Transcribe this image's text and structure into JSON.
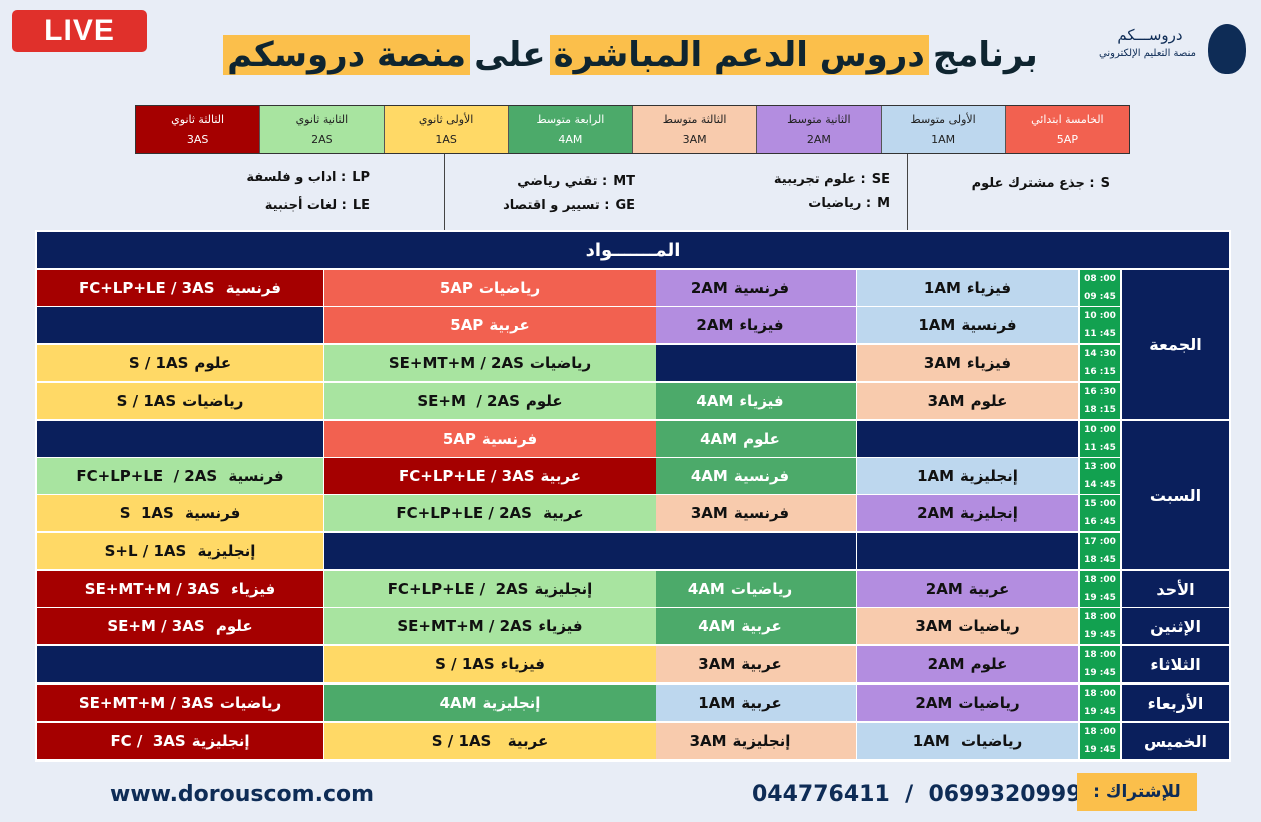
{
  "live_badge": "LIVE",
  "title": {
    "part1": "برنامج",
    "part2": "دروس الدعم المباشرة",
    "part3": "على",
    "part4": "منصة دروسكم"
  },
  "logo": {
    "name": "دروســـكم",
    "tagline": "منصة التعليم الإلكتروني"
  },
  "colors": {
    "5AP": "#f26150",
    "1AM": "#bdd7ee",
    "2AM": "#b38de0",
    "3AM": "#f8cbad",
    "4AM": "#4caa6a",
    "1AS": "#ffd966",
    "2AS": "#a8e4a0",
    "3AS": "#a50000",
    "empty": "#0a1f5c"
  },
  "levels": [
    {
      "name": "الخامسة ابتدائي",
      "code": "5AP"
    },
    {
      "name": "الأولى متوسط",
      "code": "1AM"
    },
    {
      "name": "الثانية متوسط",
      "code": "2AM"
    },
    {
      "name": "الثالثة متوسط",
      "code": "3AM"
    },
    {
      "name": "الرابعة متوسط",
      "code": "4AM"
    },
    {
      "name": "الأولى ثانوي",
      "code": "1AS"
    },
    {
      "name": "الثانية ثانوي",
      "code": "2AS"
    },
    {
      "name": "الثالثة ثانوي",
      "code": "3AS"
    }
  ],
  "abbreviations": [
    {
      "code": "S",
      "label": ": جذع مشترك علوم"
    },
    {
      "code": "SE",
      "label": ": علوم تجريبية"
    },
    {
      "code": "M",
      "label": ": رياضيات"
    },
    {
      "code": "MT",
      "label": ": تقني رياضي"
    },
    {
      "code": "GE",
      "label": ": تسيير و اقتصاد"
    },
    {
      "code": "LP",
      "label": ": اداب و فلسفة"
    },
    {
      "code": "LE",
      "label": ": لغات أجنبية"
    }
  ],
  "table_header": "المـــــــواد",
  "days": [
    {
      "name": "الجمعة",
      "rows": 4
    },
    {
      "name": "السبت",
      "rows": 4
    },
    {
      "name": "الأحد",
      "rows": 1
    },
    {
      "name": "الإثنين",
      "rows": 1
    },
    {
      "name": "الثلاثاء",
      "rows": 1
    },
    {
      "name": "الأربعاء",
      "rows": 1
    },
    {
      "name": "الخميس",
      "rows": 1
    }
  ],
  "rows": [
    {
      "time": [
        "08 :00",
        "09 :45"
      ],
      "cells": [
        [
          "فيزياء",
          "1AM",
          "1AM"
        ],
        [
          "فرنسية",
          "2AM",
          "2AM"
        ],
        [
          "رياضيات",
          "5AP",
          "5AP"
        ],
        [
          "فرنسية ",
          "FC+LP+LE / 3AS",
          "3AS"
        ]
      ]
    },
    {
      "time": [
        "10 :00",
        "11 :45"
      ],
      "cells": [
        [
          "فرنسية",
          "1AM",
          "1AM"
        ],
        [
          "فيزياء",
          "2AM",
          "2AM"
        ],
        [
          "عربية",
          "5AP",
          "5AP"
        ],
        null
      ]
    },
    {
      "time": [
        "14 :30",
        "16 :15"
      ],
      "cells": [
        [
          "فيزياء",
          "3AM",
          "3AM"
        ],
        null,
        [
          "رياضيات",
          "SE+MT+M / 2AS",
          "2AS"
        ],
        [
          "علوم",
          "S / 1AS",
          "1AS"
        ]
      ]
    },
    {
      "time": [
        "16 :30",
        "18 :15"
      ],
      "cells": [
        [
          "علوم",
          "3AM",
          "3AM"
        ],
        [
          "فيزياء",
          "4AM",
          "4AM"
        ],
        [
          "علوم",
          "SE+M  / 2AS",
          "2AS"
        ],
        [
          "رياضيات",
          "S / 1AS",
          "1AS"
        ]
      ]
    },
    {
      "time": [
        "10 :00",
        "11 :45"
      ],
      "cells": [
        null,
        [
          "علوم",
          "4AM",
          "4AM"
        ],
        [
          "فرنسية",
          "5AP",
          "5AP"
        ],
        null
      ]
    },
    {
      "time": [
        "13 :00",
        "14 :45"
      ],
      "cells": [
        [
          "إنجليزية",
          "1AM",
          "1AM"
        ],
        [
          "فرنسية",
          "4AM",
          "4AM"
        ],
        [
          "عربية",
          "FC+LP+LE / 3AS",
          "3AS"
        ],
        [
          "فرنسية ",
          "FC+LP+LE  / 2AS",
          "2AS"
        ]
      ]
    },
    {
      "time": [
        "15 :00",
        "16 :45"
      ],
      "cells": [
        [
          "إنجليزية",
          "2AM",
          "2AM"
        ],
        [
          "فرنسية",
          "3AM",
          "3AM"
        ],
        [
          "عربية ",
          "FC+LP+LE / 2AS",
          "2AS"
        ],
        [
          "فرنسية ",
          "S  1AS",
          "1AS"
        ]
      ]
    },
    {
      "time": [
        "17 :00",
        "18 :45"
      ],
      "cells": [
        null,
        null,
        null,
        [
          "إنجليزية ",
          "S+L / 1AS",
          "1AS"
        ]
      ]
    },
    {
      "time": [
        "18 :00",
        "19 :45"
      ],
      "cells": [
        [
          "عربية",
          "2AM",
          "2AM"
        ],
        [
          "رياضيات",
          "4AM",
          "4AM"
        ],
        [
          "إنجليزية",
          "FC+LP+LE /  2AS",
          "2AS"
        ],
        [
          "فيزياء ",
          "SE+MT+M / 3AS",
          "3AS"
        ]
      ]
    },
    {
      "time": [
        "18 :00",
        "19 :45"
      ],
      "cells": [
        [
          "رياضيات",
          "3AM",
          "3AM"
        ],
        [
          "عربية",
          "4AM",
          "4AM"
        ],
        [
          "فيزياء",
          "SE+MT+M / 2AS",
          "2AS"
        ],
        [
          "علوم ",
          "SE+M / 3AS",
          "3AS"
        ]
      ]
    },
    {
      "time": [
        "18 :00",
        "19 :45"
      ],
      "cells": [
        [
          "علوم",
          "2AM",
          "2AM"
        ],
        [
          "عربية",
          "3AM",
          "3AM"
        ],
        [
          "فيزياء",
          "S / 1AS",
          "1AS"
        ],
        null
      ]
    },
    {
      "time": [
        "18 :00",
        "19 :45"
      ],
      "cells": [
        [
          "رياضيات",
          "2AM",
          "2AM"
        ],
        [
          "عربية",
          "1AM",
          "1AM"
        ],
        [
          "إنجليزية",
          "4AM",
          "4AM"
        ],
        [
          "رياضيات",
          "SE+MT+M / 3AS",
          "3AS"
        ]
      ]
    },
    {
      "time": [
        "18 :00",
        "19 :45"
      ],
      "cells": [
        [
          "رياضيات ",
          "1AM",
          "1AM"
        ],
        [
          "إنجليزية",
          "3AM",
          "3AM"
        ],
        [
          "عربية  ",
          "S / 1AS",
          "1AS"
        ],
        [
          "إنجليزية",
          "FC /  3AS",
          "3AS"
        ]
      ]
    }
  ],
  "footer": {
    "website": "www.dorouscom.com",
    "phones": "044776411  /  0699320999",
    "subscribe": "للإشتراك :"
  }
}
